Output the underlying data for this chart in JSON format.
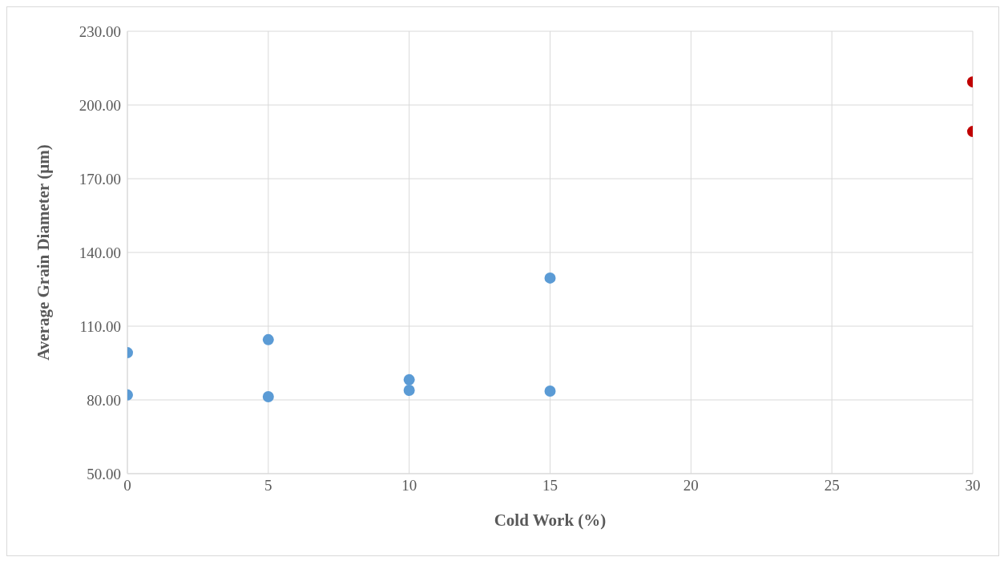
{
  "chart_data": {
    "type": "scatter",
    "xlabel": "Cold Work (%)",
    "ylabel": "Average Grain Diameter (µm)",
    "series": [
      {
        "color": "#5b9bd5",
        "x": [
          0,
          0,
          5,
          5,
          10,
          10,
          15,
          15
        ],
        "values": [
          99.2,
          82.0,
          104.5,
          81.3,
          88.2,
          83.9,
          129.6,
          83.6
        ]
      },
      {
        "color": "#c00000",
        "x": [
          30,
          30
        ],
        "values": [
          209.4,
          189.2
        ]
      }
    ],
    "xlim": [
      0,
      30
    ],
    "xticks": [
      0,
      5,
      10,
      15,
      20,
      25,
      30
    ],
    "ylim": [
      50,
      230
    ],
    "yticks": [
      {
        "value": 50,
        "label": "50.00"
      },
      {
        "value": 80,
        "label": "80.00"
      },
      {
        "value": 110,
        "label": "110.00"
      },
      {
        "value": 140,
        "label": "140.00"
      },
      {
        "value": 170,
        "label": "170.00"
      },
      {
        "value": 200,
        "label": "200.00"
      },
      {
        "value": 230,
        "label": "230.00"
      }
    ],
    "grid": true,
    "marker": "circle"
  }
}
